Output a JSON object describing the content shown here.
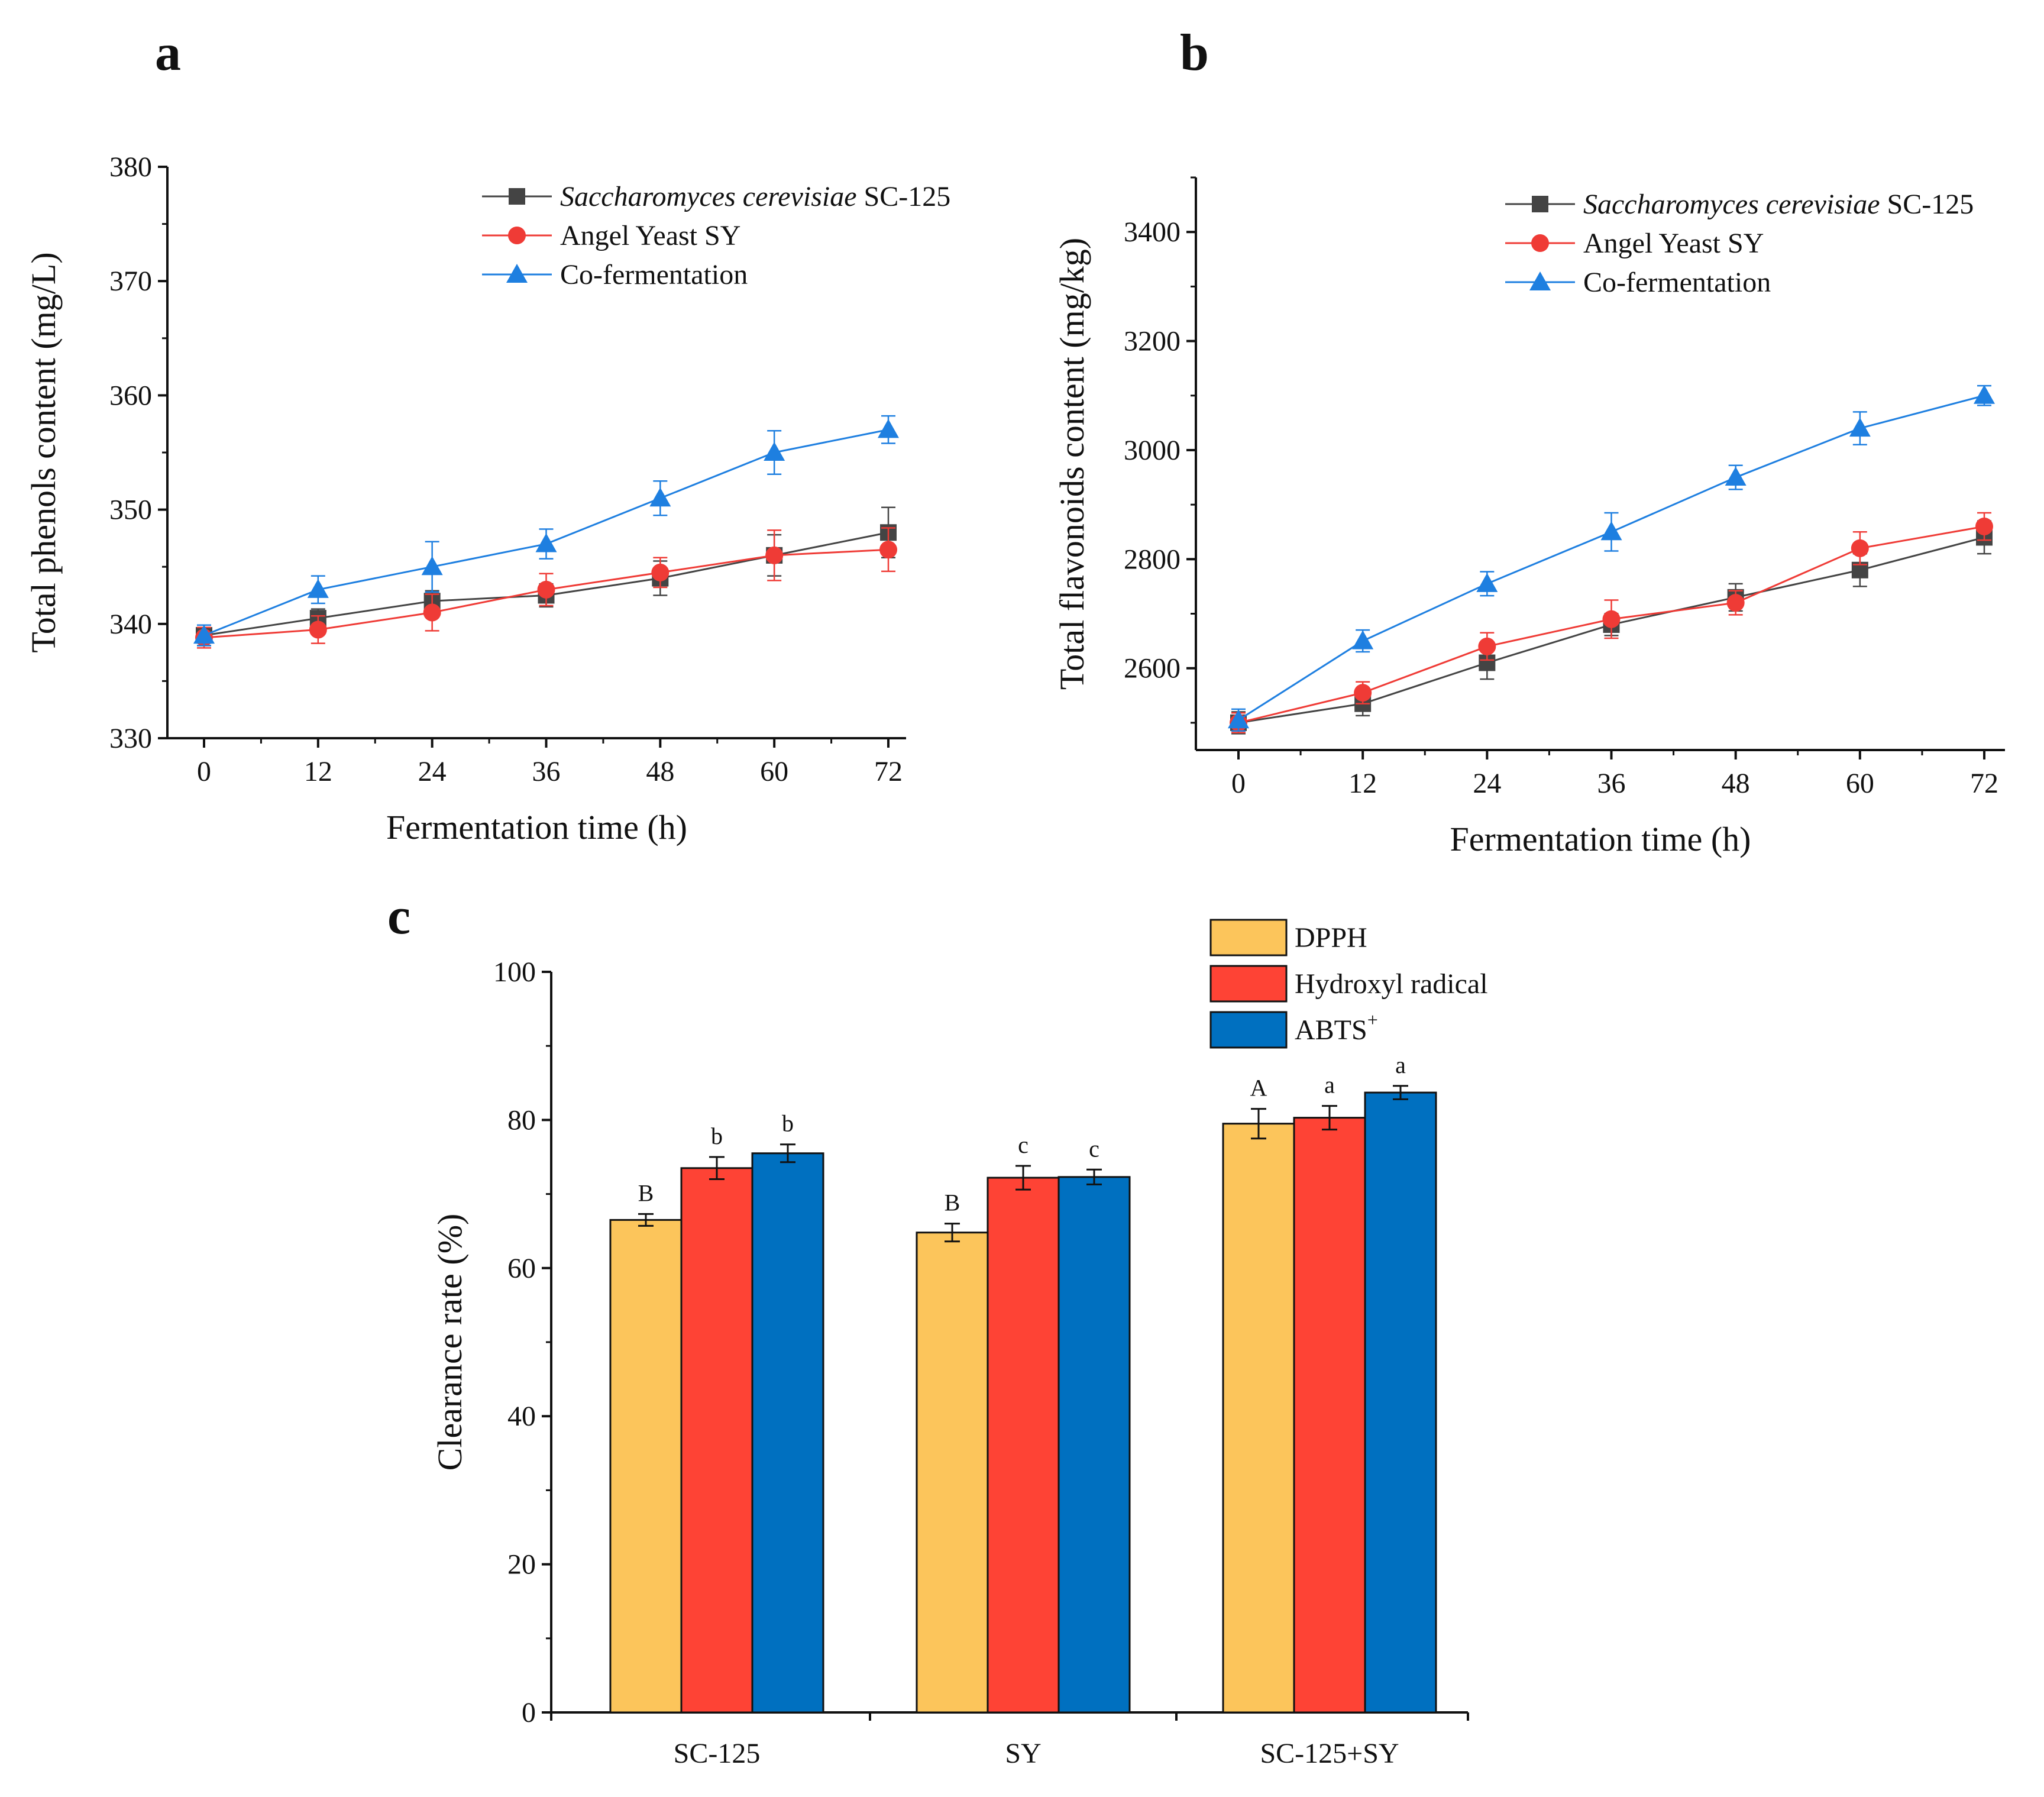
{
  "chart_data": [
    {
      "panel": "a",
      "type": "line",
      "xlabel": "Fermentation time (h)",
      "ylabel": "Total phenols content (mg/L)",
      "x": [
        0,
        12,
        24,
        36,
        48,
        60,
        72
      ],
      "xticks": [
        "0",
        "12",
        "24",
        "36",
        "48",
        "60",
        "72"
      ],
      "yticks": [
        "330",
        "340",
        "350",
        "360",
        "370",
        "380"
      ],
      "ylim": [
        330,
        380
      ],
      "series": [
        {
          "name_italic": "Saccharomyces cerevisiae",
          "name_plain": " SC-125",
          "marker": "square",
          "color": "#444444",
          "values": [
            339,
            340.5,
            342,
            342.5,
            344,
            346,
            348
          ],
          "errors": [
            0.9,
            0.8,
            0.9,
            1.0,
            1.5,
            1.8,
            2.2
          ]
        },
        {
          "name_italic": "",
          "name_plain": "Angel Yeast SY",
          "marker": "circle",
          "color": "#ef3b36",
          "values": [
            338.8,
            339.5,
            341,
            343,
            344.5,
            346,
            346.5
          ],
          "errors": [
            0.9,
            1.2,
            1.6,
            1.4,
            1.3,
            2.2,
            1.9
          ]
        },
        {
          "name_italic": "",
          "name_plain": "Co-fermentation",
          "marker": "triangle",
          "color": "#1e7fe0",
          "values": [
            339,
            343,
            345,
            347,
            351,
            355,
            357
          ],
          "errors": [
            0.9,
            1.2,
            2.2,
            1.3,
            1.5,
            1.9,
            1.2
          ]
        }
      ]
    },
    {
      "panel": "b",
      "type": "line",
      "xlabel": "Fermentation time (h)",
      "ylabel": "Total flavonoids content (mg/kg)",
      "x": [
        0,
        12,
        24,
        36,
        48,
        60,
        72
      ],
      "xticks": [
        "0",
        "12",
        "24",
        "36",
        "48",
        "60",
        "72"
      ],
      "yticks": [
        "2600",
        "2800",
        "3000",
        "3200",
        "3400"
      ],
      "ylim": [
        2450,
        3500
      ],
      "series": [
        {
          "name_italic": "Saccharomyces cerevisiae",
          "name_plain": " SC-125",
          "marker": "square",
          "color": "#444444",
          "values": [
            2500,
            2535,
            2610,
            2680,
            2730,
            2780,
            2840
          ],
          "errors": [
            20,
            22,
            30,
            20,
            25,
            30,
            30
          ]
        },
        {
          "name_italic": "",
          "name_plain": "Angel Yeast SY",
          "marker": "circle",
          "color": "#ef3b36",
          "values": [
            2500,
            2555,
            2640,
            2690,
            2720,
            2820,
            2860
          ],
          "errors": [
            18,
            20,
            25,
            35,
            22,
            30,
            25
          ]
        },
        {
          "name_italic": "",
          "name_plain": "Co-fermentation",
          "marker": "triangle",
          "color": "#1e7fe0",
          "values": [
            2505,
            2650,
            2755,
            2850,
            2950,
            3040,
            3100
          ],
          "errors": [
            20,
            20,
            22,
            35,
            22,
            30,
            18
          ]
        }
      ]
    },
    {
      "panel": "c",
      "type": "bar",
      "ylabel": "Clearance rate (%)",
      "categories": [
        "SC-125",
        "SY",
        "SC-125+SY"
      ],
      "yticks": [
        "0",
        "20",
        "40",
        "60",
        "80",
        "100"
      ],
      "ylim": [
        0,
        100
      ],
      "series": [
        {
          "name": "DPPH",
          "sup": "",
          "color": "#fcc55b",
          "values": [
            66.5,
            64.8,
            79.5
          ],
          "errors": [
            0.8,
            1.2,
            2.0
          ],
          "letters": [
            "B",
            "B",
            "A"
          ]
        },
        {
          "name": "Hydroxyl radical",
          "sup": "",
          "color": "#fe4335",
          "values": [
            73.5,
            72.2,
            80.3
          ],
          "errors": [
            1.5,
            1.6,
            1.6
          ],
          "letters": [
            "b",
            "c",
            "a"
          ]
        },
        {
          "name": "ABTS",
          "sup": "+",
          "color": "#0070c0",
          "values": [
            75.5,
            72.3,
            83.7
          ],
          "errors": [
            1.2,
            1.0,
            0.9
          ],
          "letters": [
            "b",
            "c",
            "a"
          ]
        }
      ]
    }
  ]
}
